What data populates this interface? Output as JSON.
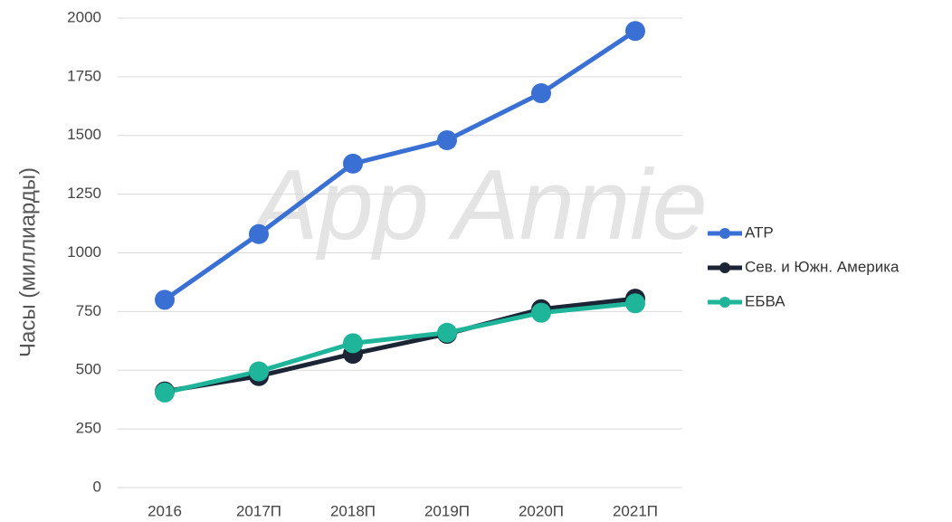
{
  "chart_data": {
    "type": "line",
    "ylabel": "Часы (миллиарды)",
    "watermark": "App Annie",
    "categories": [
      "2016",
      "2017П",
      "2018П",
      "2019П",
      "2020П",
      "2021П"
    ],
    "series": [
      {
        "name": "АТР",
        "color": "#3a70d4",
        "values": [
          800,
          1080,
          1380,
          1480,
          1680,
          1945
        ]
      },
      {
        "name": "Сев. и Южн. Америка",
        "color": "#1b2535",
        "values": [
          410,
          475,
          570,
          655,
          760,
          805
        ]
      },
      {
        "name": "ЕБВА",
        "color": "#1fb59b",
        "values": [
          405,
          495,
          615,
          660,
          745,
          785
        ]
      }
    ],
    "ylim": [
      0,
      2000
    ],
    "yticks": [
      0,
      250,
      500,
      750,
      1000,
      1250,
      1500,
      1750,
      2000
    ],
    "grid": true,
    "legend": "right"
  }
}
